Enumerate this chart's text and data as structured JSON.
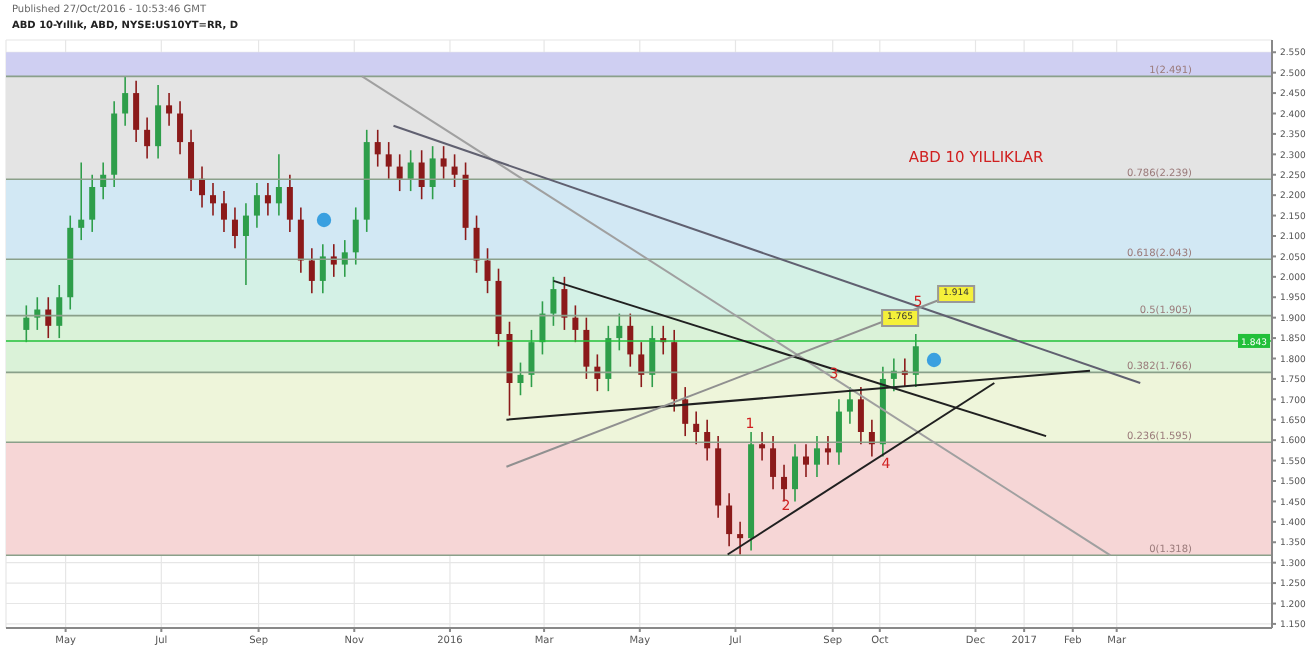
{
  "chart_data": {
    "type": "candlestick",
    "title": "ABD 10-Yıllık, ABD, NYSE:US10YT=RR, D",
    "subtitle": "Published 27/Oct/2016 - 10:53:46 GMT",
    "x": [
      "2015-04-06",
      "2015-04-13",
      "2015-04-20",
      "2015-04-27",
      "2015-05-04",
      "2015-05-11",
      "2015-05-18",
      "2015-05-25",
      "2015-06-01",
      "2015-06-08",
      "2015-06-15",
      "2015-06-22",
      "2015-06-29",
      "2015-07-06",
      "2015-07-13",
      "2015-07-20",
      "2015-07-27",
      "2015-08-03",
      "2015-08-10",
      "2015-08-17",
      "2015-08-24",
      "2015-08-31",
      "2015-09-07",
      "2015-09-14",
      "2015-09-21",
      "2015-09-28",
      "2015-10-05",
      "2015-10-12",
      "2015-10-19",
      "2015-10-26",
      "2015-11-02",
      "2015-11-09",
      "2015-11-16",
      "2015-11-23",
      "2015-11-30",
      "2015-12-07",
      "2015-12-14",
      "2015-12-21",
      "2015-12-28",
      "2016-01-04",
      "2016-01-11",
      "2016-01-18",
      "2016-01-25",
      "2016-02-01",
      "2016-02-08",
      "2016-02-15",
      "2016-02-22",
      "2016-02-29",
      "2016-03-07",
      "2016-03-14",
      "2016-03-21",
      "2016-03-28",
      "2016-04-04",
      "2016-04-11",
      "2016-04-18",
      "2016-04-25",
      "2016-05-02",
      "2016-05-09",
      "2016-05-16",
      "2016-05-23",
      "2016-05-30",
      "2016-06-06",
      "2016-06-13",
      "2016-06-20",
      "2016-06-27",
      "2016-07-04",
      "2016-07-11",
      "2016-07-18",
      "2016-07-25",
      "2016-08-01",
      "2016-08-08",
      "2016-08-15",
      "2016-08-22",
      "2016-08-29",
      "2016-09-05",
      "2016-09-12",
      "2016-09-19",
      "2016-09-26",
      "2016-10-03",
      "2016-10-10",
      "2016-10-17",
      "2016-10-24"
    ],
    "ohlc": [
      [
        1.87,
        1.93,
        1.84,
        1.9
      ],
      [
        1.9,
        1.95,
        1.87,
        1.92
      ],
      [
        1.92,
        1.95,
        1.85,
        1.88
      ],
      [
        1.88,
        1.98,
        1.85,
        1.95
      ],
      [
        1.95,
        2.15,
        1.92,
        2.12
      ],
      [
        2.12,
        2.28,
        2.09,
        2.14
      ],
      [
        2.14,
        2.25,
        2.11,
        2.22
      ],
      [
        2.22,
        2.28,
        2.19,
        2.25
      ],
      [
        2.25,
        2.43,
        2.22,
        2.4
      ],
      [
        2.4,
        2.49,
        2.37,
        2.45
      ],
      [
        2.45,
        2.48,
        2.33,
        2.36
      ],
      [
        2.36,
        2.39,
        2.29,
        2.32
      ],
      [
        2.32,
        2.47,
        2.29,
        2.42
      ],
      [
        2.42,
        2.45,
        2.37,
        2.4
      ],
      [
        2.4,
        2.43,
        2.3,
        2.33
      ],
      [
        2.33,
        2.36,
        2.21,
        2.24
      ],
      [
        2.24,
        2.27,
        2.17,
        2.2
      ],
      [
        2.2,
        2.23,
        2.15,
        2.18
      ],
      [
        2.18,
        2.21,
        2.11,
        2.14
      ],
      [
        2.14,
        2.17,
        2.07,
        2.1
      ],
      [
        2.1,
        2.18,
        1.98,
        2.15
      ],
      [
        2.15,
        2.23,
        2.12,
        2.2
      ],
      [
        2.2,
        2.23,
        2.15,
        2.18
      ],
      [
        2.18,
        2.3,
        2.15,
        2.22
      ],
      [
        2.22,
        2.25,
        2.11,
        2.14
      ],
      [
        2.14,
        2.17,
        2.01,
        2.04
      ],
      [
        2.04,
        2.07,
        1.96,
        1.99
      ],
      [
        1.99,
        2.08,
        1.96,
        2.05
      ],
      [
        2.05,
        2.08,
        2.0,
        2.03
      ],
      [
        2.03,
        2.09,
        2.0,
        2.06
      ],
      [
        2.06,
        2.17,
        2.03,
        2.14
      ],
      [
        2.14,
        2.36,
        2.11,
        2.33
      ],
      [
        2.33,
        2.36,
        2.27,
        2.3
      ],
      [
        2.3,
        2.33,
        2.24,
        2.27
      ],
      [
        2.27,
        2.3,
        2.21,
        2.24
      ],
      [
        2.24,
        2.31,
        2.21,
        2.28
      ],
      [
        2.28,
        2.31,
        2.19,
        2.22
      ],
      [
        2.22,
        2.32,
        2.19,
        2.29
      ],
      [
        2.29,
        2.32,
        2.24,
        2.27
      ],
      [
        2.27,
        2.3,
        2.22,
        2.25
      ],
      [
        2.25,
        2.28,
        2.09,
        2.12
      ],
      [
        2.12,
        2.15,
        2.01,
        2.04
      ],
      [
        2.04,
        2.07,
        1.96,
        1.99
      ],
      [
        1.99,
        2.02,
        1.83,
        1.86
      ],
      [
        1.86,
        1.89,
        1.66,
        1.74
      ],
      [
        1.74,
        1.79,
        1.71,
        1.76
      ],
      [
        1.76,
        1.87,
        1.73,
        1.84
      ],
      [
        1.84,
        1.94,
        1.81,
        1.91
      ],
      [
        1.91,
        2.0,
        1.88,
        1.97
      ],
      [
        1.97,
        2.0,
        1.87,
        1.9
      ],
      [
        1.9,
        1.93,
        1.84,
        1.87
      ],
      [
        1.87,
        1.9,
        1.75,
        1.78
      ],
      [
        1.78,
        1.81,
        1.72,
        1.75
      ],
      [
        1.75,
        1.88,
        1.72,
        1.85
      ],
      [
        1.85,
        1.91,
        1.82,
        1.88
      ],
      [
        1.88,
        1.91,
        1.78,
        1.81
      ],
      [
        1.81,
        1.84,
        1.73,
        1.76
      ],
      [
        1.76,
        1.88,
        1.73,
        1.85
      ],
      [
        1.85,
        1.88,
        1.81,
        1.84
      ],
      [
        1.84,
        1.87,
        1.67,
        1.7
      ],
      [
        1.7,
        1.73,
        1.61,
        1.64
      ],
      [
        1.64,
        1.67,
        1.59,
        1.62
      ],
      [
        1.62,
        1.65,
        1.55,
        1.58
      ],
      [
        1.58,
        1.61,
        1.41,
        1.44
      ],
      [
        1.44,
        1.47,
        1.34,
        1.37
      ],
      [
        1.37,
        1.4,
        1.32,
        1.36
      ],
      [
        1.36,
        1.62,
        1.33,
        1.59
      ],
      [
        1.59,
        1.62,
        1.55,
        1.58
      ],
      [
        1.58,
        1.61,
        1.48,
        1.51
      ],
      [
        1.51,
        1.54,
        1.45,
        1.48
      ],
      [
        1.48,
        1.59,
        1.45,
        1.56
      ],
      [
        1.56,
        1.59,
        1.51,
        1.54
      ],
      [
        1.54,
        1.61,
        1.51,
        1.58
      ],
      [
        1.58,
        1.61,
        1.54,
        1.57
      ],
      [
        1.57,
        1.7,
        1.54,
        1.67
      ],
      [
        1.67,
        1.73,
        1.64,
        1.7
      ],
      [
        1.7,
        1.73,
        1.59,
        1.62
      ],
      [
        1.62,
        1.65,
        1.56,
        1.59
      ],
      [
        1.59,
        1.78,
        1.56,
        1.75
      ],
      [
        1.75,
        1.8,
        1.72,
        1.77
      ],
      [
        1.77,
        1.8,
        1.73,
        1.76
      ],
      [
        1.76,
        1.86,
        1.73,
        1.83
      ]
    ],
    "series": [
      {
        "type": "line",
        "color": "#a0a0a0",
        "x": [
          "2015-11-06",
          "2017-02-25"
        ],
        "values": [
          2.491,
          1.318
        ]
      },
      {
        "type": "line",
        "color": "#606070",
        "x": [
          "2015-11-26",
          "2017-03-16"
        ],
        "values": [
          2.37,
          1.74
        ]
      },
      {
        "type": "line",
        "color": "#202020",
        "x": [
          "2016-03-07",
          "2017-01-15"
        ],
        "values": [
          1.99,
          1.61
        ]
      },
      {
        "type": "line",
        "color": "#202020",
        "x": [
          "2016-02-06",
          "2017-02-12"
        ],
        "values": [
          1.65,
          1.77
        ]
      },
      {
        "type": "line",
        "color": "#909090",
        "x": [
          "2016-02-06",
          "2016-11-09"
        ],
        "values": [
          1.535,
          1.945
        ]
      },
      {
        "type": "line",
        "color": "#202020",
        "x": [
          "2016-06-26",
          "2016-12-13"
        ],
        "values": [
          1.32,
          1.74
        ]
      }
    ],
    "xlim": [
      "2015-03-24",
      "2017-06-08"
    ],
    "xticks": [
      {
        "value": "2015-05-01",
        "label": "May"
      },
      {
        "value": "2015-07-01",
        "label": "Jul"
      },
      {
        "value": "2015-09-01",
        "label": "Sep"
      },
      {
        "value": "2015-11-01",
        "label": "Nov"
      },
      {
        "value": "2016-01-01",
        "label": "2016"
      },
      {
        "value": "2016-03-01",
        "label": "Mar"
      },
      {
        "value": "2016-05-01",
        "label": "May"
      },
      {
        "value": "2016-07-01",
        "label": "Jul"
      },
      {
        "value": "2016-09-01",
        "label": "Sep"
      },
      {
        "value": "2016-10-01",
        "label": "Oct"
      },
      {
        "value": "2016-12-01",
        "label": "Dec"
      },
      {
        "value": "2017-01-01",
        "label": "2017"
      },
      {
        "value": "2017-02-01",
        "label": "Feb"
      },
      {
        "value": "2017-03-01",
        "label": "Mar"
      }
    ],
    "ylim": [
      1.14,
      2.58
    ],
    "yticks": [
      {
        "value": 1.15,
        "label": "1.150"
      },
      {
        "value": 1.2,
        "label": "1.200"
      },
      {
        "value": 1.25,
        "label": "1.250"
      },
      {
        "value": 1.3,
        "label": "1.300"
      },
      {
        "value": 1.35,
        "label": "1.350"
      },
      {
        "value": 1.4,
        "label": "1.400"
      },
      {
        "value": 1.45,
        "label": "1.450"
      },
      {
        "value": 1.5,
        "label": "1.500"
      },
      {
        "value": 1.55,
        "label": "1.550"
      },
      {
        "value": 1.6,
        "label": "1.600"
      },
      {
        "value": 1.65,
        "label": "1.650"
      },
      {
        "value": 1.7,
        "label": "1.700"
      },
      {
        "value": 1.75,
        "label": "1.750"
      },
      {
        "value": 1.8,
        "label": "1.800"
      },
      {
        "value": 1.85,
        "label": "1.850"
      },
      {
        "value": 1.9,
        "label": "1.900"
      },
      {
        "value": 1.95,
        "label": "1.950"
      },
      {
        "value": 2.0,
        "label": "2.000"
      },
      {
        "value": 2.05,
        "label": "2.050"
      },
      {
        "value": 2.1,
        "label": "2.100"
      },
      {
        "value": 2.15,
        "label": "2.150"
      },
      {
        "value": 2.2,
        "label": "2.200"
      },
      {
        "value": 2.25,
        "label": "2.250"
      },
      {
        "value": 2.3,
        "label": "2.300"
      },
      {
        "value": 2.35,
        "label": "2.350"
      },
      {
        "value": 2.4,
        "label": "2.400"
      },
      {
        "value": 2.45,
        "label": "2.450"
      },
      {
        "value": 2.5,
        "label": "2.500"
      },
      {
        "value": 2.55,
        "label": "2.550"
      }
    ],
    "bands": [
      {
        "axis": "y",
        "from": 2.491,
        "to": 2.55,
        "color": "#cfcff2"
      },
      {
        "axis": "y",
        "from": 2.239,
        "to": 2.491,
        "color": "#e4e4e4"
      },
      {
        "axis": "y",
        "from": 2.043,
        "to": 2.239,
        "color": "#d2e8f4"
      },
      {
        "axis": "y",
        "from": 1.905,
        "to": 2.043,
        "color": "#d4f1e6"
      },
      {
        "axis": "y",
        "from": 1.766,
        "to": 1.905,
        "color": "#daf2d8"
      },
      {
        "axis": "y",
        "from": 1.595,
        "to": 1.766,
        "color": "#eef5da"
      },
      {
        "axis": "y",
        "from": 1.318,
        "to": 1.595,
        "color": "#f6d6d6"
      }
    ],
    "ref_lines": [
      {
        "axis": "y",
        "value": 2.491,
        "label": "1(2.491)"
      },
      {
        "axis": "y",
        "value": 2.239,
        "label": "0.786(2.239)"
      },
      {
        "axis": "y",
        "value": 2.043,
        "label": "0.618(2.043)"
      },
      {
        "axis": "y",
        "value": 1.905,
        "label": "0.5(1.905)"
      },
      {
        "axis": "y",
        "value": 1.766,
        "label": "0.382(1.766)"
      },
      {
        "axis": "y",
        "value": 1.595,
        "label": "0.236(1.595)"
      },
      {
        "axis": "y",
        "value": 1.318,
        "label": "0(1.318)"
      },
      {
        "axis": "y",
        "value": 1.843,
        "label": "1.843",
        "color": "#22c03a"
      }
    ],
    "annotations": [
      "ABD 10 YILLIKLAR",
      "1",
      "2",
      "3",
      "4",
      "5",
      "1.765",
      "1.914"
    ],
    "grid": true
  }
}
